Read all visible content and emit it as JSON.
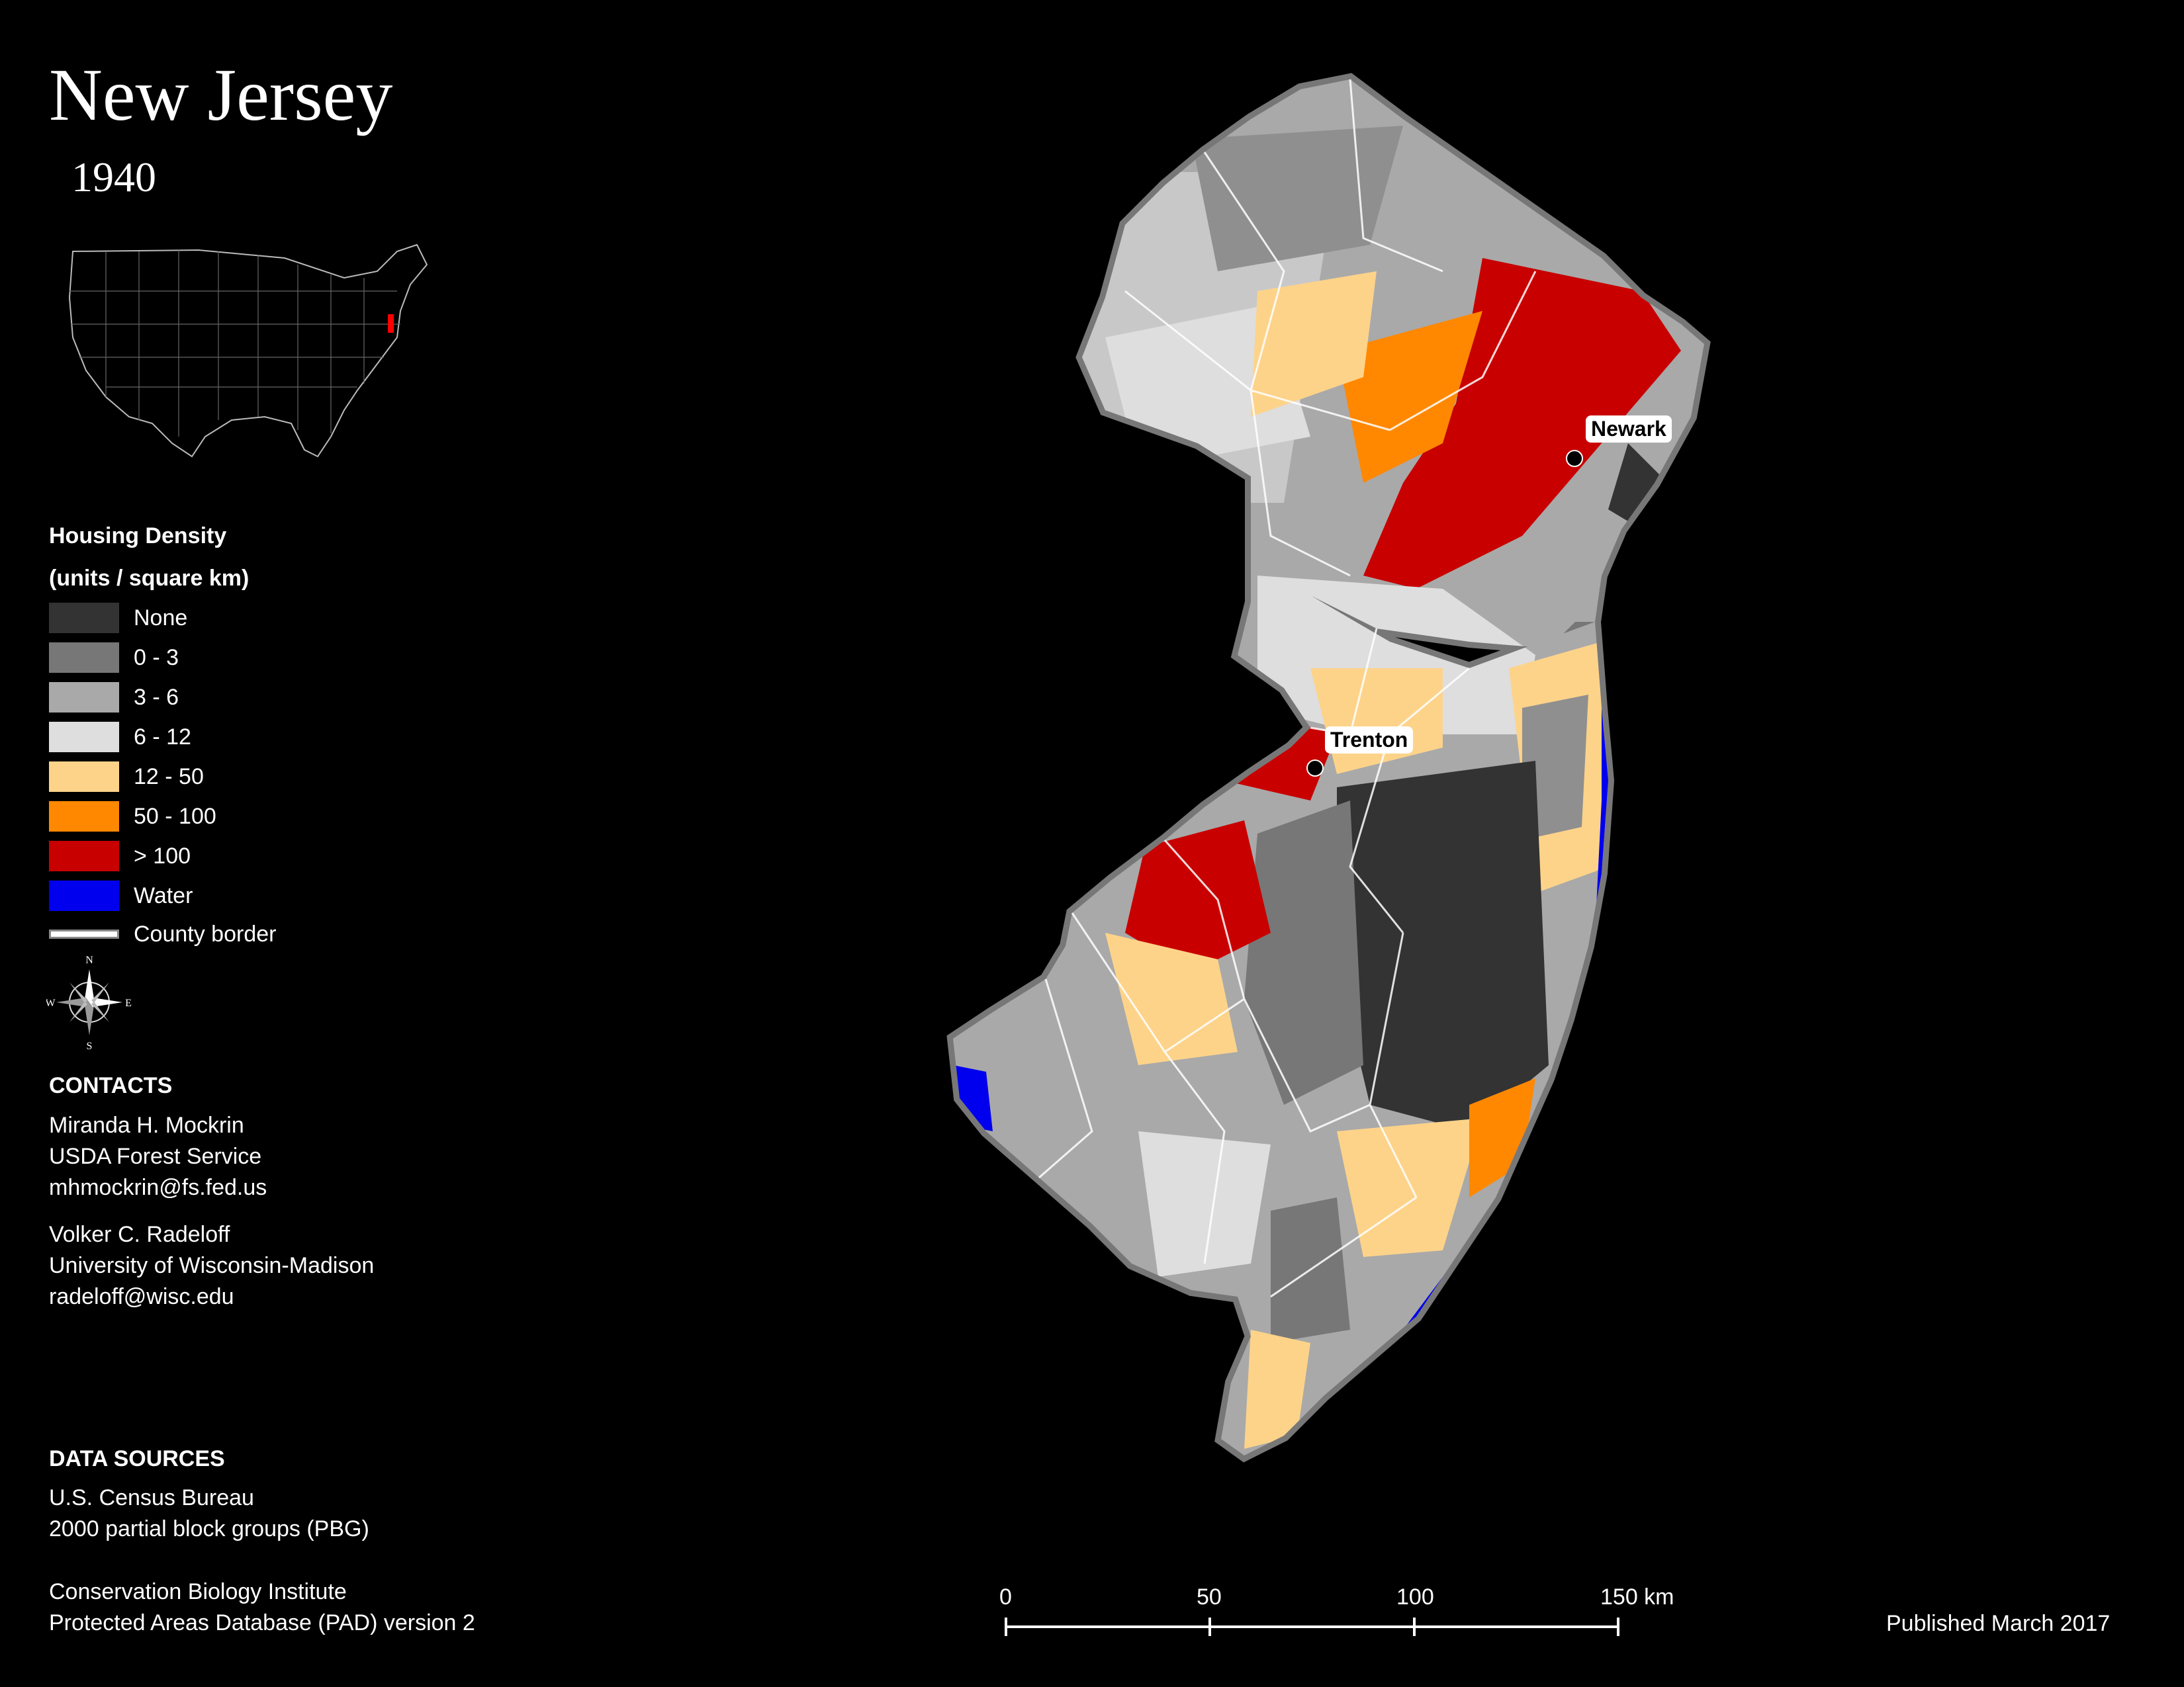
{
  "map": {
    "title": "New Jersey",
    "year": "1940"
  },
  "legend": {
    "title_line1": "Housing Density",
    "title_line2": "(units / square km)",
    "items": [
      {
        "label": "None",
        "color": "#333333"
      },
      {
        "label": "0 - 3",
        "color": "#777777"
      },
      {
        "label": "3 - 6",
        "color": "#a9a9a9"
      },
      {
        "label": "6 - 12",
        "color": "#dedede"
      },
      {
        "label": "12 - 50",
        "color": "#fdd38a"
      },
      {
        "label": "50 - 100",
        "color": "#ff8800"
      },
      {
        "label": "> 100",
        "color": "#c80000"
      },
      {
        "label": "Water",
        "color": "#0000ee"
      }
    ],
    "county_border_label": "County border"
  },
  "compass": {
    "n": "N",
    "s": "S",
    "e": "E",
    "w": "W"
  },
  "contacts": {
    "heading": "CONTACTS",
    "person1": {
      "name": "Miranda H. Mockrin",
      "org": "USDA Forest Service",
      "email": "mhmockrin@fs.fed.us"
    },
    "person2": {
      "name": "Volker C. Radeloff",
      "org": "University of Wisconsin-Madison",
      "email": "radeloff@wisc.edu"
    }
  },
  "data_sources": {
    "heading": "DATA SOURCES",
    "line1": "U.S. Census Bureau",
    "line2": "2000 partial block groups (PBG)",
    "line3": "Conservation Biology Institute",
    "line4": "Protected Areas Database (PAD) version 2"
  },
  "cities": {
    "newark": "Newark",
    "trenton": "Trenton"
  },
  "scale": {
    "labels": [
      "0",
      "50",
      "100",
      "150 km"
    ]
  },
  "footer": {
    "published": "Published March 2017"
  },
  "colors": {
    "background": "#000000",
    "state_outline": "#777777",
    "highlight_state": "#ff0000"
  }
}
